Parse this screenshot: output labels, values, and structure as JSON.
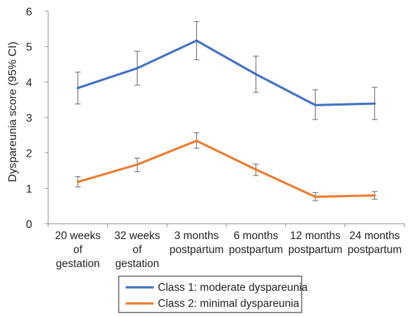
{
  "chart_data": {
    "type": "line",
    "title": "",
    "xlabel": "",
    "ylabel": "Dyspareunia score (95% CI)",
    "ylim": [
      0,
      6
    ],
    "yticks": [
      "0",
      "1",
      "2",
      "3",
      "4",
      "5",
      "6"
    ],
    "grid": false,
    "legend_position": "bottom",
    "categories": [
      [
        "20 weeks",
        "of",
        "gestation"
      ],
      [
        "32 weeks",
        "of",
        "gestation"
      ],
      [
        "3 months",
        "postpartum"
      ],
      [
        "6 months",
        "postpartum"
      ],
      [
        "12 months",
        "postpartum"
      ],
      [
        "24 months",
        "postpartum"
      ]
    ],
    "series": [
      {
        "name": "Class 1: moderate dyspareunia",
        "color": "#4472C4",
        "values": [
          3.83,
          4.39,
          5.17,
          4.22,
          3.35,
          3.39
        ],
        "ci_low": [
          3.38,
          3.91,
          4.63,
          3.71,
          2.94,
          2.94
        ],
        "ci_high": [
          4.28,
          4.87,
          5.71,
          4.73,
          3.78,
          3.85
        ]
      },
      {
        "name": "Class 2: minimal dyspareunia",
        "color": "#ED7D31",
        "values": [
          1.18,
          1.67,
          2.34,
          1.53,
          0.76,
          0.8
        ],
        "ci_low": [
          1.04,
          1.47,
          2.13,
          1.36,
          0.65,
          0.69
        ],
        "ci_high": [
          1.33,
          1.85,
          2.57,
          1.68,
          0.88,
          0.91
        ]
      }
    ]
  }
}
